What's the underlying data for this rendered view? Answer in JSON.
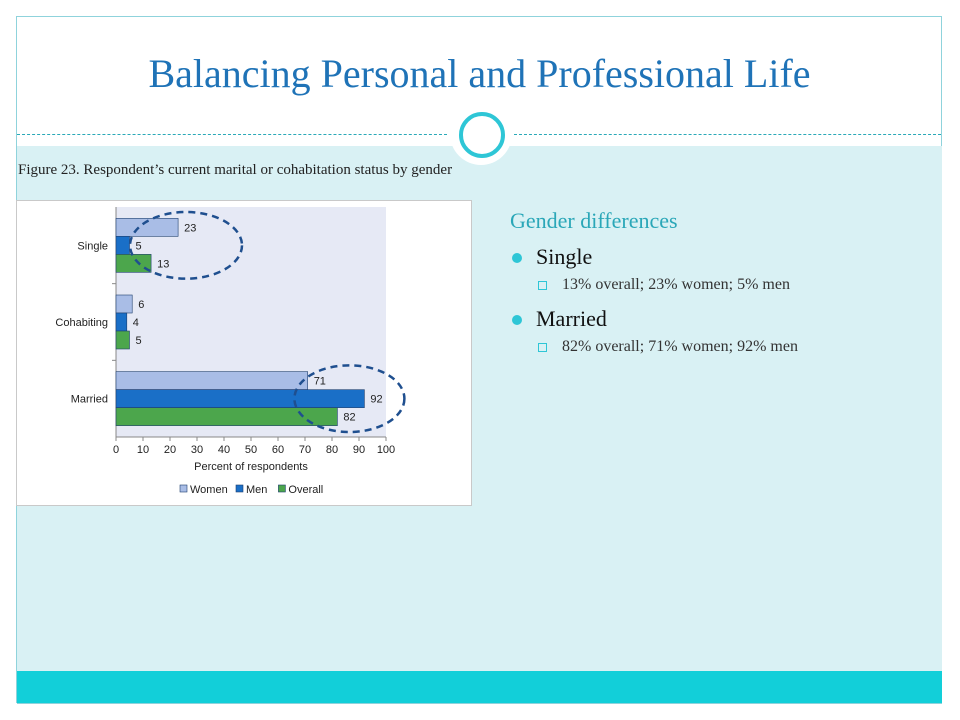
{
  "slide": {
    "title": "Balancing Personal and Professional Life",
    "figure_caption": "Figure 23. Respondent’s current marital or cohabitation status by gender",
    "subheading": "Gender differences",
    "bullets": [
      {
        "label": "Single",
        "detail": "13% overall; 23% women; 5% men"
      },
      {
        "label": "Married",
        "detail": "82% overall; 71% women; 92% men"
      }
    ]
  },
  "colors": {
    "title": "#1f73b7",
    "accent": "#2ec6d6",
    "women": "#a9bde6",
    "men": "#1a6fc7",
    "overall": "#4ca64c",
    "plot_bg": "#e6e9f5",
    "highlight_ellipse": "#1f4f8f"
  },
  "chart_data": {
    "type": "bar",
    "orientation": "horizontal",
    "categories": [
      "Single",
      "Cohabiting",
      "Married"
    ],
    "series": [
      {
        "name": "Women",
        "values": [
          23,
          6,
          71
        ]
      },
      {
        "name": "Men",
        "values": [
          5,
          4,
          92
        ]
      },
      {
        "name": "Overall",
        "values": [
          13,
          5,
          82
        ]
      }
    ],
    "xlabel": "Percent of respondents",
    "xlim": [
      0,
      100
    ],
    "xticks": [
      0,
      10,
      20,
      30,
      40,
      50,
      60,
      70,
      80,
      90,
      100
    ],
    "legend_position": "bottom",
    "highlighted_categories": [
      "Single",
      "Married"
    ]
  }
}
